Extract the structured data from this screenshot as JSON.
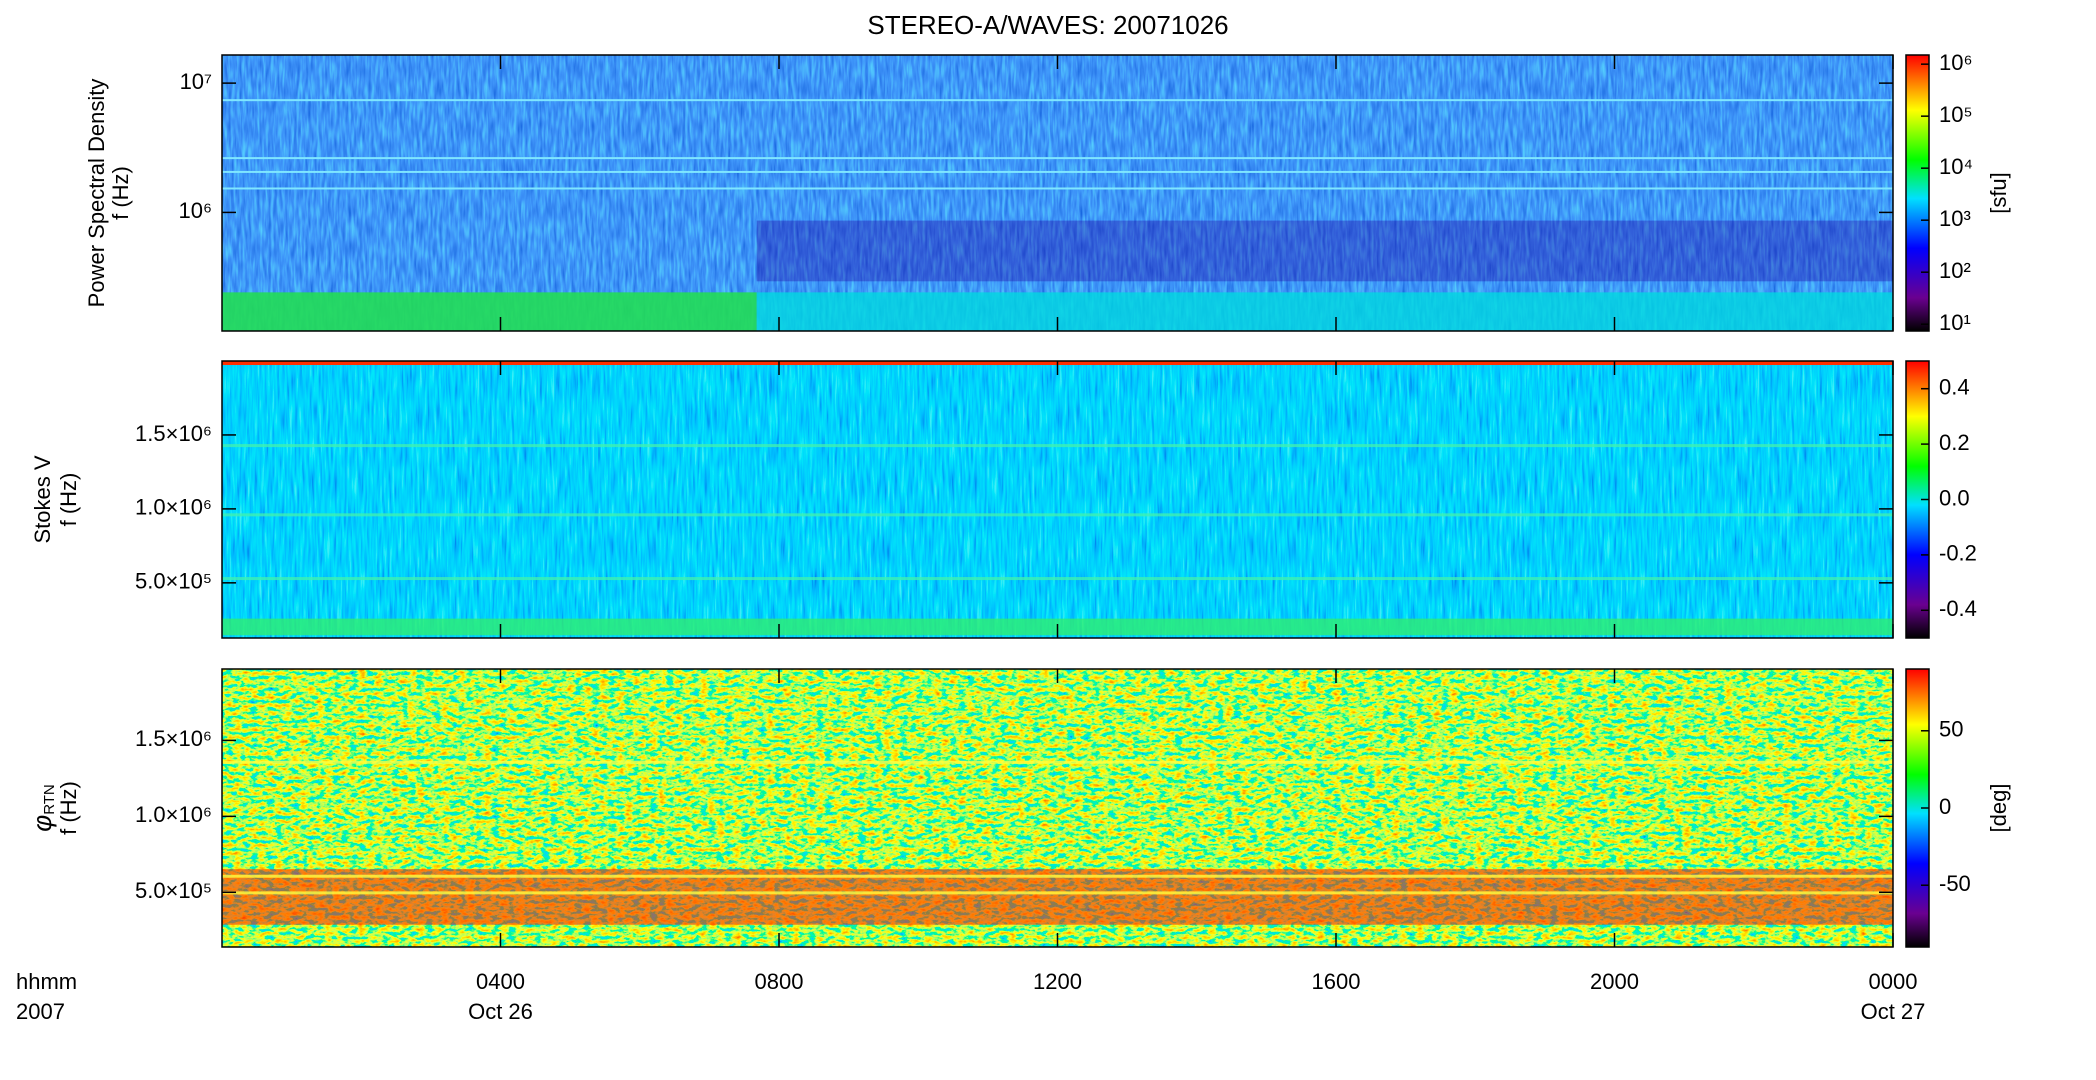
{
  "title": "STEREO-A/WAVES: 20071026",
  "chart_data": [
    {
      "type": "spectrogram",
      "ylabel": "Power Spectral Density",
      "ylabel2": "f (Hz)",
      "ylog": true,
      "ylim": [
        121000,
        16500000
      ],
      "yticks": [
        {
          "value": 1000000,
          "label": "10⁶"
        },
        {
          "value": 10000000,
          "label": "10⁷"
        }
      ],
      "colorbar": {
        "log": true,
        "lim": [
          7.4,
          1500000
        ],
        "label": "[sfu]",
        "ticks": [
          {
            "value": 10,
            "label": "10¹"
          },
          {
            "value": 100,
            "label": "10²"
          },
          {
            "value": 1000,
            "label": "10³"
          },
          {
            "value": 10000,
            "label": "10⁴"
          },
          {
            "value": 100000,
            "label": "10⁵"
          },
          {
            "value": 1000000,
            "label": "10⁶"
          }
        ]
      }
    },
    {
      "type": "spectrogram",
      "ylabel": "Stokes V",
      "ylabel2": "f (Hz)",
      "ylog": false,
      "ylim": [
        127000,
        2000000
      ],
      "yticks": [
        {
          "value": 500000,
          "label": "5.0×10⁵"
        },
        {
          "value": 1000000,
          "label": "1.0×10⁶"
        },
        {
          "value": 1500000,
          "label": "1.5×10⁶"
        }
      ],
      "colorbar": {
        "log": false,
        "lim": [
          -0.5,
          0.5
        ],
        "ticks": [
          -0.4,
          -0.2,
          {
            "value": 0,
            "label": "0.0"
          },
          0.2,
          0.4
        ]
      }
    },
    {
      "type": "spectrogram",
      "ylabel": "φ",
      "ylabel_sub": "RTN",
      "ylabel2": "f (Hz)",
      "ylog": false,
      "ylim": [
        140000,
        1970000
      ],
      "yticks": [
        {
          "value": 500000,
          "label": "5.0×10⁵"
        },
        {
          "value": 1000000,
          "label": "1.0×10⁶"
        },
        {
          "value": 1500000,
          "label": "1.5×10⁶"
        }
      ],
      "colorbar": {
        "log": false,
        "lim": [
          -90,
          90
        ],
        "label": "[deg]",
        "ticks": [
          -50,
          0,
          50
        ]
      },
      "xlim": [
        0,
        24
      ],
      "xticks": [
        {
          "value": 4,
          "label": "0400"
        },
        {
          "value": 8,
          "label": "0800"
        },
        {
          "value": 12,
          "label": "1200"
        },
        {
          "value": 16,
          "label": "1600"
        },
        {
          "value": 20,
          "label": "2000"
        },
        {
          "value": 24,
          "label": "0000"
        }
      ],
      "date_labels": [
        {
          "value": 4,
          "label": "Oct 26"
        },
        {
          "value": 24,
          "label": "Oct 27"
        }
      ],
      "x_row_labels": [
        "hhmm",
        "2007"
      ]
    }
  ]
}
